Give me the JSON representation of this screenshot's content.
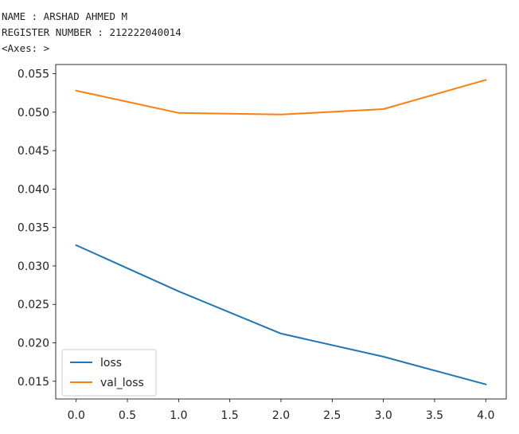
{
  "output": {
    "lines": [
      "NAME : ARSHAD AHMED M",
      "REGISTER NUMBER : 212222040014",
      "<Axes: >"
    ]
  },
  "chart_data": {
    "type": "line",
    "x": [
      0.0,
      1.0,
      2.0,
      3.0,
      4.0
    ],
    "series": [
      {
        "name": "loss",
        "values": [
          0.0327,
          0.0267,
          0.0212,
          0.0182,
          0.0146
        ],
        "color": "#1f77b4"
      },
      {
        "name": "val_loss",
        "values": [
          0.0528,
          0.0499,
          0.0497,
          0.0504,
          0.0542
        ],
        "color": "#ff7f0e"
      }
    ],
    "xticks": [
      0.0,
      0.5,
      1.0,
      1.5,
      2.0,
      2.5,
      3.0,
      3.5,
      4.0
    ],
    "xtick_labels": [
      "0.0",
      "0.5",
      "1.0",
      "1.5",
      "2.0",
      "2.5",
      "3.0",
      "3.5",
      "4.0"
    ],
    "yticks": [
      0.015,
      0.02,
      0.025,
      0.03,
      0.035,
      0.04,
      0.045,
      0.05,
      0.055
    ],
    "ytick_labels": [
      "0.015",
      "0.020",
      "0.025",
      "0.030",
      "0.035",
      "0.040",
      "0.045",
      "0.050",
      "0.055"
    ],
    "xlim": [
      -0.2,
      4.2
    ],
    "ylim": [
      0.0127,
      0.0562
    ],
    "grid": false,
    "legend_position": "lower-left",
    "title": "",
    "xlabel": "",
    "ylabel": ""
  }
}
